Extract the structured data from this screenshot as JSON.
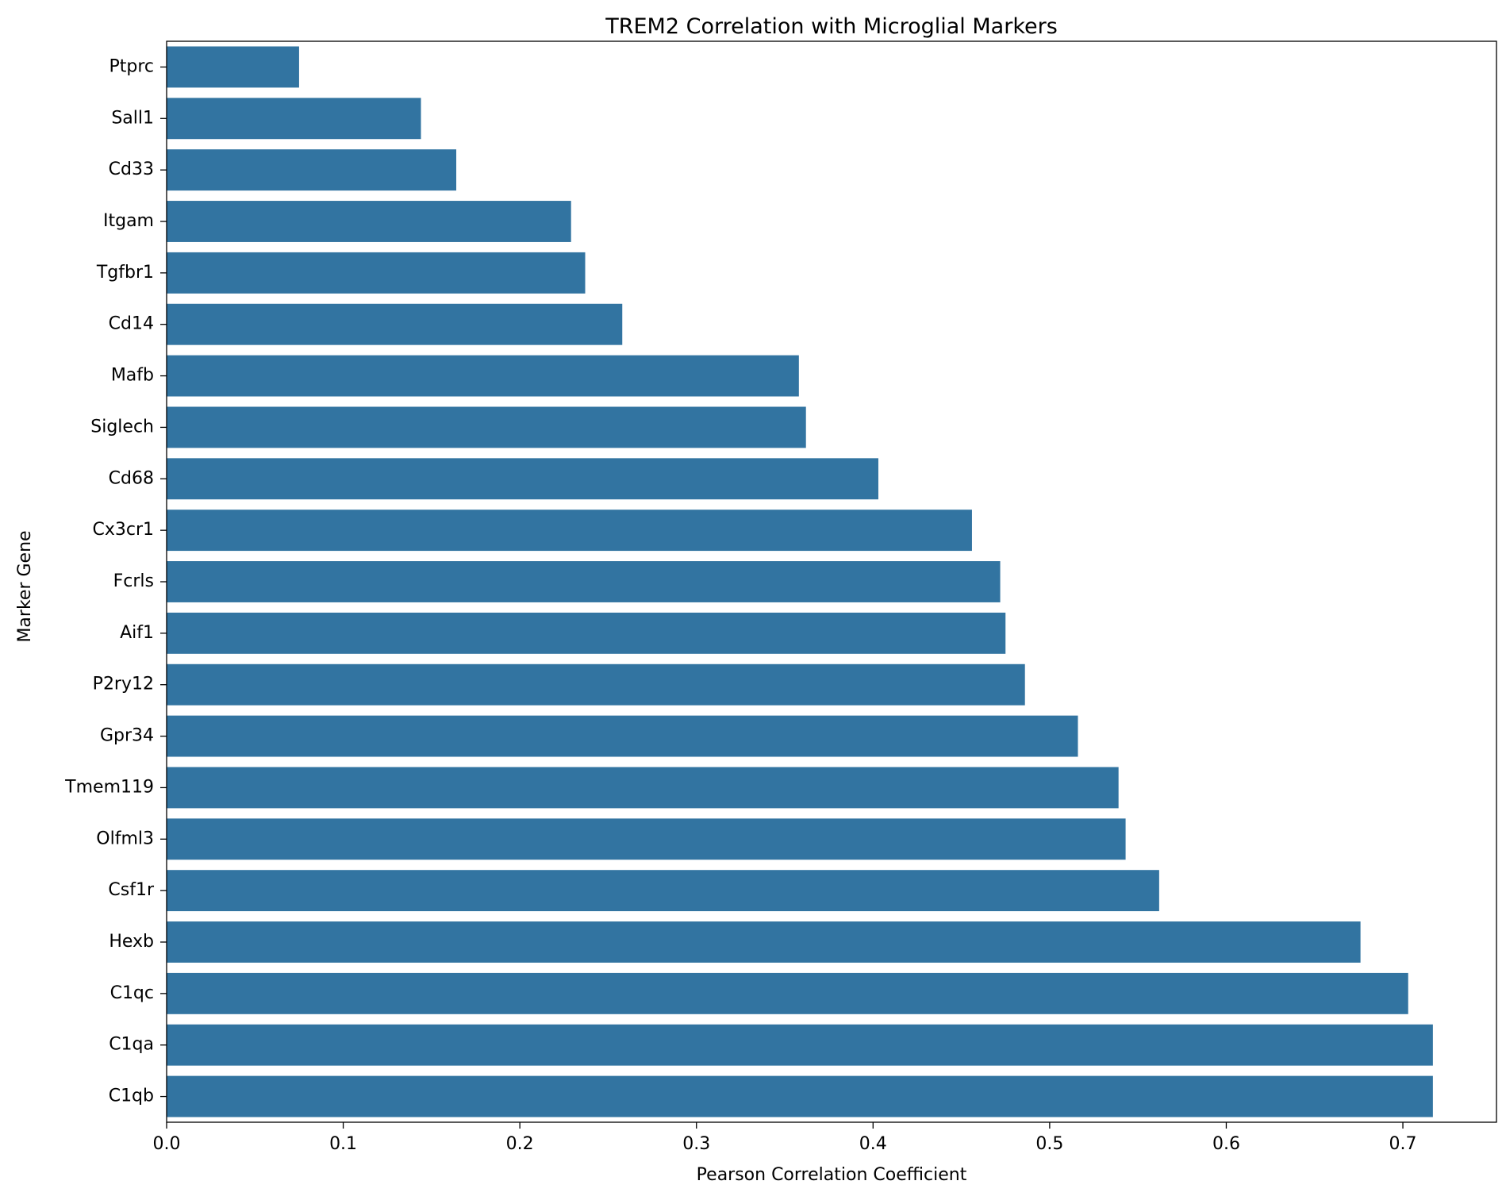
{
  "chart_data": {
    "type": "bar",
    "orientation": "horizontal",
    "title": "TREM2 Correlation with Microglial Markers",
    "xlabel": "Pearson Correlation Coefficient",
    "ylabel": "Marker Gene",
    "xlim": [
      0,
      0.753
    ],
    "xticks": [
      "0.0",
      "0.1",
      "0.2",
      "0.3",
      "0.4",
      "0.5",
      "0.6",
      "0.7"
    ],
    "grid": false,
    "bar_color": "#3274a1",
    "categories": [
      "Ptprc",
      "Sall1",
      "Cd33",
      "Itgam",
      "Tgfbr1",
      "Cd14",
      "Mafb",
      "Siglech",
      "Cd68",
      "Cx3cr1",
      "Fcrls",
      "Aif1",
      "P2ry12",
      "Gpr34",
      "Tmem119",
      "Olfml3",
      "Csf1r",
      "Hexb",
      "C1qc",
      "C1qa",
      "C1qb"
    ],
    "values": [
      0.075,
      0.144,
      0.164,
      0.229,
      0.237,
      0.258,
      0.358,
      0.362,
      0.403,
      0.456,
      0.472,
      0.475,
      0.486,
      0.516,
      0.539,
      0.543,
      0.562,
      0.676,
      0.703,
      0.717,
      0.717
    ]
  }
}
